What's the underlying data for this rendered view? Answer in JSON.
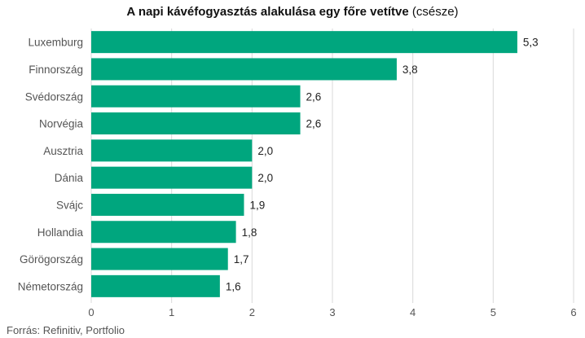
{
  "header": {
    "title": "A napi kávéfogyasztás alakulása egy főre vetítve",
    "unit": "(csésze)"
  },
  "footer": {
    "source": "Forrás: Refinitiv, Portfolio"
  },
  "colors": {
    "bar": "#00a67e",
    "grid": "#d9d9d9",
    "label": "#555555",
    "value": "#222222"
  },
  "chart_data": {
    "type": "bar",
    "orientation": "horizontal",
    "title": "A napi kávéfogyasztás alakulása egy főre vetítve (csésze)",
    "categories": [
      "Luxemburg",
      "Finnország",
      "Svédország",
      "Norvégia",
      "Ausztria",
      "Dánia",
      "Svájc",
      "Hollandia",
      "Görögország",
      "Németország"
    ],
    "values": [
      5.3,
      3.8,
      2.6,
      2.6,
      2.0,
      2.0,
      1.9,
      1.8,
      1.7,
      1.6
    ],
    "value_labels": [
      "5,3",
      "3,8",
      "2,6",
      "2,6",
      "2,0",
      "2,0",
      "1,9",
      "1,8",
      "1,7",
      "1,6"
    ],
    "xlim": [
      0,
      6
    ],
    "xticks": [
      0,
      1,
      2,
      3,
      4,
      5,
      6
    ],
    "grid": "vertical",
    "legend": "none"
  }
}
